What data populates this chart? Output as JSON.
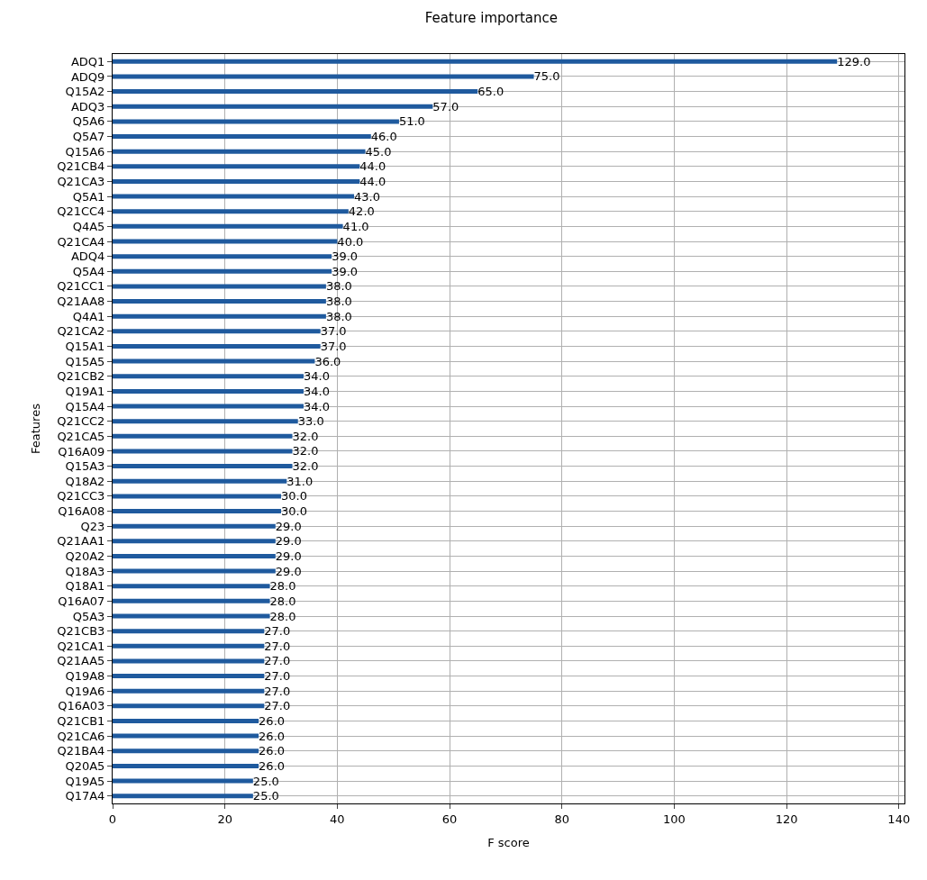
{
  "chart_data": {
    "type": "bar",
    "orientation": "horizontal",
    "title": "Feature importance",
    "xlabel": "F score",
    "ylabel": "Features",
    "categories": [
      "ADQ1",
      "ADQ9",
      "Q15A2",
      "ADQ3",
      "Q5A6",
      "Q5A7",
      "Q15A6",
      "Q21CB4",
      "Q21CA3",
      "Q5A1",
      "Q21CC4",
      "Q4A5",
      "Q21CA4",
      "ADQ4",
      "Q5A4",
      "Q21CC1",
      "Q21AA8",
      "Q4A1",
      "Q21CA2",
      "Q15A1",
      "Q15A5",
      "Q21CB2",
      "Q19A1",
      "Q15A4",
      "Q21CC2",
      "Q21CA5",
      "Q16A09",
      "Q15A3",
      "Q18A2",
      "Q21CC3",
      "Q16A08",
      "Q23",
      "Q21AA1",
      "Q20A2",
      "Q18A3",
      "Q18A1",
      "Q16A07",
      "Q5A3",
      "Q21CB3",
      "Q21CA1",
      "Q21AA5",
      "Q19A8",
      "Q19A6",
      "Q16A03",
      "Q21CB1",
      "Q21CA6",
      "Q21BA4",
      "Q20A5",
      "Q19A5",
      "Q17A4"
    ],
    "values": [
      129,
      75,
      65,
      57,
      51,
      46,
      45,
      44,
      44,
      43,
      42,
      41,
      40,
      39,
      39,
      38,
      38,
      38,
      37,
      37,
      36,
      34,
      34,
      34,
      33,
      32,
      32,
      32,
      31,
      30,
      30,
      29,
      29,
      29,
      29,
      28,
      28,
      28,
      27,
      27,
      27,
      27,
      27,
      27,
      26,
      26,
      26,
      26,
      25,
      25
    ],
    "value_labels": [
      "129.0",
      "75.0",
      "65.0",
      "57.0",
      "51.0",
      "46.0",
      "45.0",
      "44.0",
      "44.0",
      "43.0",
      "42.0",
      "41.0",
      "40.0",
      "39.0",
      "39.0",
      "38.0",
      "38.0",
      "38.0",
      "37.0",
      "37.0",
      "36.0",
      "34.0",
      "34.0",
      "34.0",
      "33.0",
      "32.0",
      "32.0",
      "32.0",
      "31.0",
      "30.0",
      "30.0",
      "29.0",
      "29.0",
      "29.0",
      "29.0",
      "28.0",
      "28.0",
      "28.0",
      "27.0",
      "27.0",
      "27.0",
      "27.0",
      "27.0",
      "27.0",
      "26.0",
      "26.0",
      "26.0",
      "26.0",
      "25.0",
      "25.0"
    ],
    "color": "#1f5a9e",
    "xlim": [
      0,
      141
    ],
    "xticks": [
      0,
      20,
      40,
      60,
      80,
      100,
      120,
      140
    ],
    "grid": true
  }
}
